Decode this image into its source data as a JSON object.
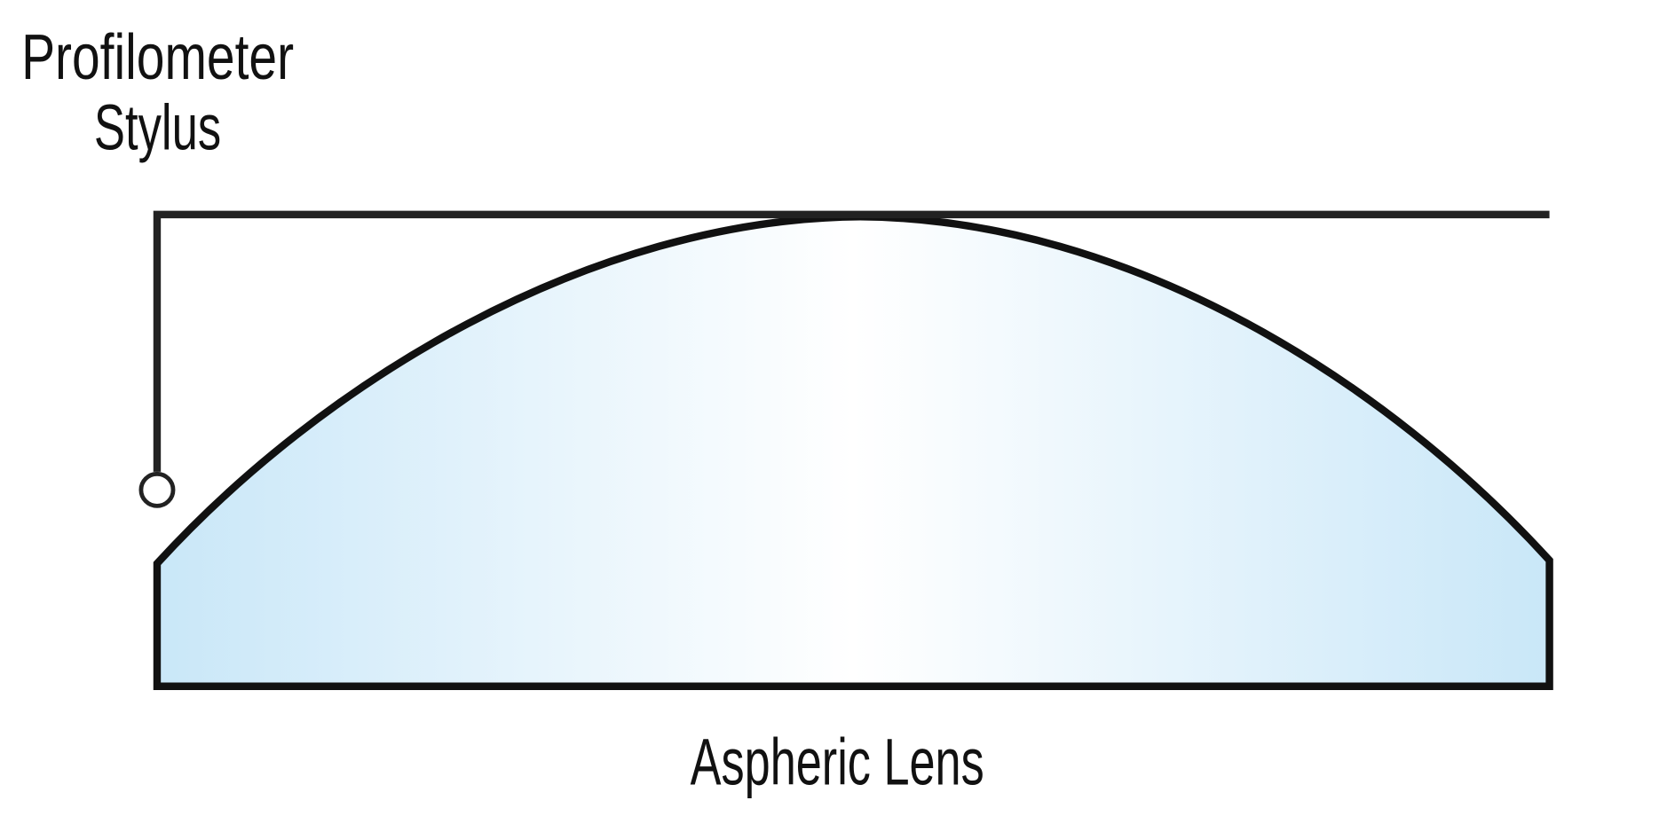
{
  "labels": {
    "stylus_line1": "Profilometer",
    "stylus_line2": "Stylus",
    "lens": "Aspheric Lens"
  },
  "colors": {
    "lens_edge": "#c9e7f8",
    "lens_center": "#ffffff",
    "outline": "#111111"
  }
}
